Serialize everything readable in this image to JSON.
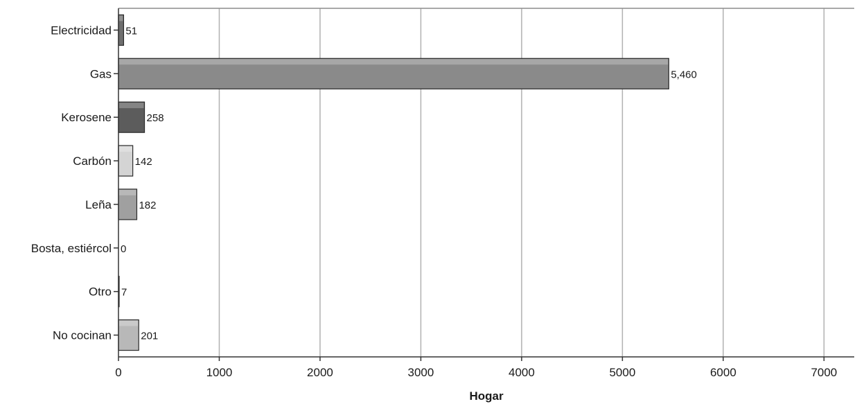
{
  "chart_data": {
    "type": "bar",
    "orientation": "horizontal",
    "categories": [
      "Electricidad",
      "Gas",
      "Kerosene",
      "Carbón",
      "Leña",
      "Bosta, estiércol",
      "Otro",
      "No cocinan"
    ],
    "values": [
      51,
      5460,
      258,
      142,
      182,
      0,
      7,
      201
    ],
    "value_labels": [
      "51",
      "5,460",
      "258",
      "142",
      "182",
      "0",
      "7",
      "201"
    ],
    "xlabel": "Hogar",
    "ylabel": "",
    "title": "",
    "xlim": [
      0,
      7300
    ],
    "x_ticks": [
      0,
      1000,
      2000,
      3000,
      4000,
      5000,
      6000,
      7000
    ],
    "x_tick_labels": [
      "0",
      "1000",
      "2000",
      "3000",
      "4000",
      "5000",
      "6000",
      "7000"
    ],
    "grid": "vertical",
    "colors": {
      "bars": [
        "#6e6e6e",
        "#8a8a8a",
        "#5c5c5c",
        "#d4d4d4",
        "#a0a0a0",
        "#b5b5b5",
        "#7a7a7a",
        "#b8b8b8"
      ],
      "bar_stroke": "#2a2a2a",
      "gridline": "#b0b0b0",
      "plot_border": "#8c8c8c"
    }
  }
}
